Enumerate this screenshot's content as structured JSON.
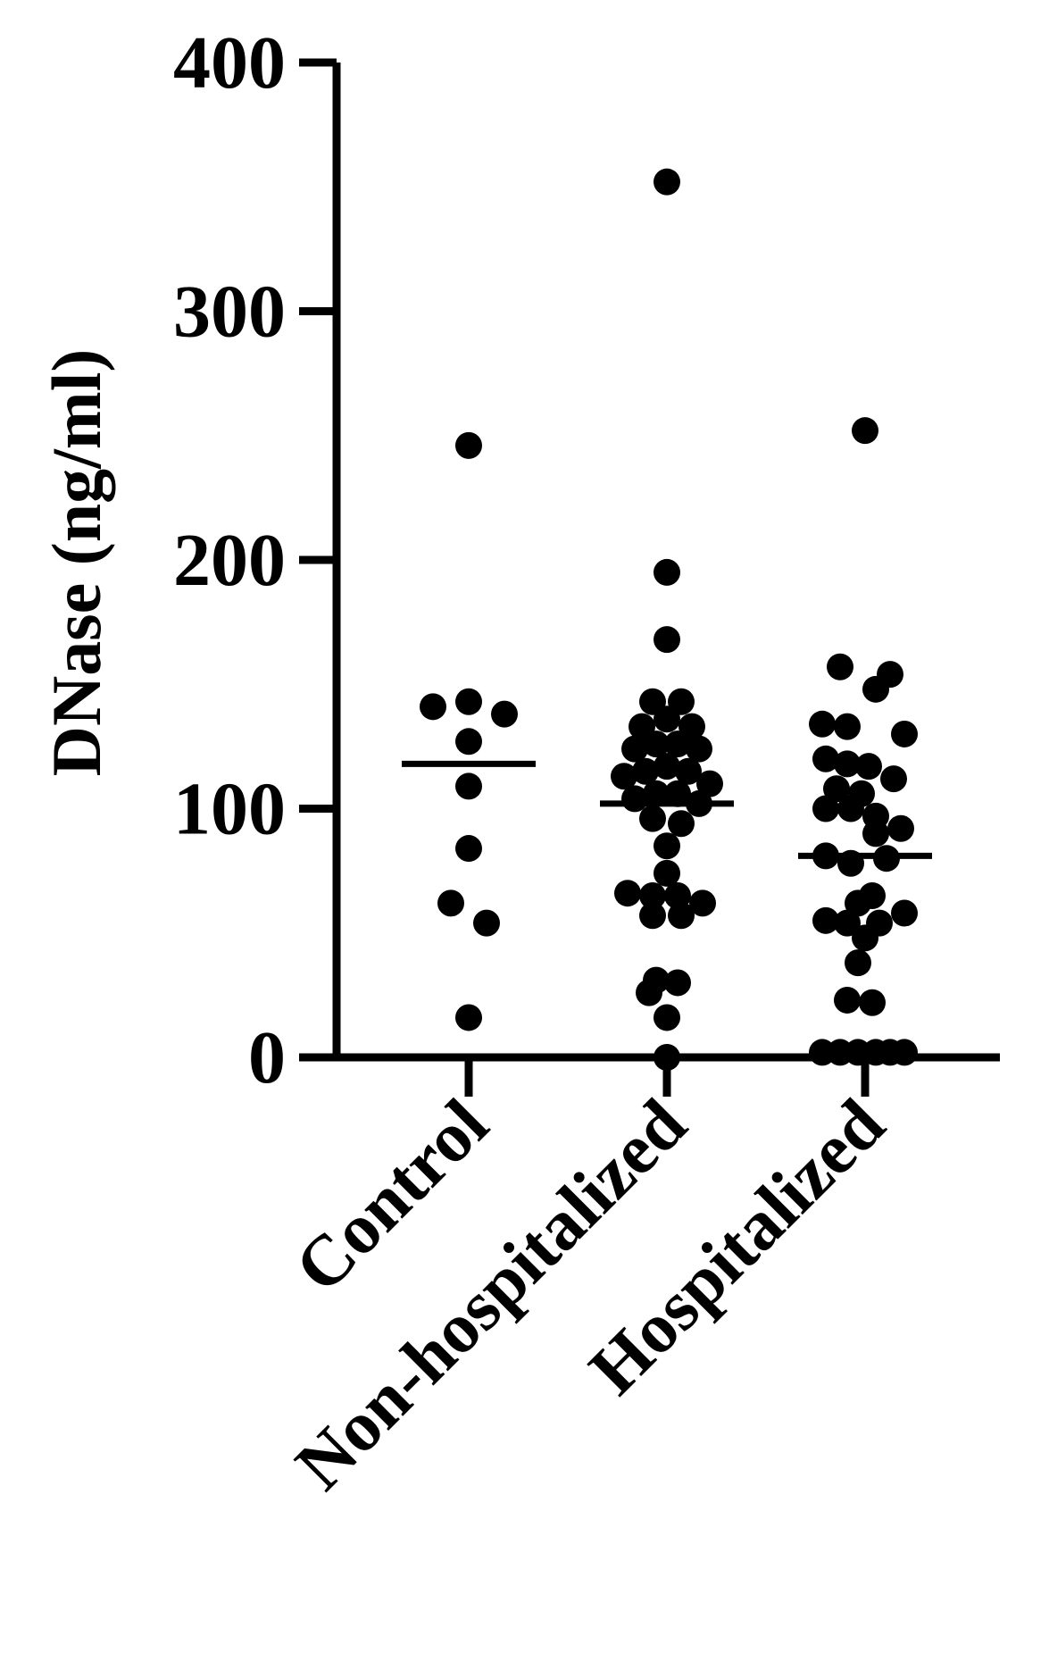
{
  "chart_data": {
    "type": "scatter",
    "title": "",
    "xlabel": "",
    "ylabel": "DNase (ng/ml)",
    "ylim": [
      0,
      400
    ],
    "yticks": [
      0,
      100,
      200,
      300,
      400
    ],
    "ytick_labels": [
      "0",
      "100",
      "200",
      "300",
      "400"
    ],
    "categories": [
      "Control",
      "Non-hospitalized",
      "Hospitalized"
    ],
    "grid": false,
    "color": "#000000",
    "series": [
      {
        "category": "Control",
        "mean": 118,
        "points": [
          {
            "offset": -0.5,
            "y": 141
          },
          {
            "offset": 0,
            "y": 143
          },
          {
            "offset": 0.5,
            "y": 138
          },
          {
            "offset": 0,
            "y": 127
          },
          {
            "offset": 0,
            "y": 109
          },
          {
            "offset": 0,
            "y": 84
          },
          {
            "offset": -0.25,
            "y": 62
          },
          {
            "offset": 0.25,
            "y": 54
          },
          {
            "offset": 0,
            "y": 16
          },
          {
            "offset": 0,
            "y": 246
          }
        ]
      },
      {
        "category": "Non-hospitalized",
        "mean": 102,
        "points": [
          {
            "offset": 0,
            "y": 352
          },
          {
            "offset": 0,
            "y": 195
          },
          {
            "offset": 0,
            "y": 168
          },
          {
            "offset": -0.2,
            "y": 143
          },
          {
            "offset": 0.2,
            "y": 143
          },
          {
            "offset": -0.35,
            "y": 133
          },
          {
            "offset": 0,
            "y": 136
          },
          {
            "offset": 0.35,
            "y": 133
          },
          {
            "offset": -0.45,
            "y": 124
          },
          {
            "offset": -0.15,
            "y": 126
          },
          {
            "offset": 0.15,
            "y": 126
          },
          {
            "offset": 0.45,
            "y": 124
          },
          {
            "offset": -0.6,
            "y": 113
          },
          {
            "offset": -0.3,
            "y": 115
          },
          {
            "offset": 0,
            "y": 117
          },
          {
            "offset": 0.3,
            "y": 115
          },
          {
            "offset": 0.6,
            "y": 110
          },
          {
            "offset": -0.45,
            "y": 104
          },
          {
            "offset": -0.15,
            "y": 106
          },
          {
            "offset": 0.15,
            "y": 106
          },
          {
            "offset": 0.45,
            "y": 102
          },
          {
            "offset": -0.2,
            "y": 96
          },
          {
            "offset": 0.2,
            "y": 94
          },
          {
            "offset": 0,
            "y": 85
          },
          {
            "offset": 0,
            "y": 74
          },
          {
            "offset": -0.55,
            "y": 66
          },
          {
            "offset": -0.2,
            "y": 65
          },
          {
            "offset": 0.15,
            "y": 65
          },
          {
            "offset": 0.5,
            "y": 62
          },
          {
            "offset": -0.2,
            "y": 57
          },
          {
            "offset": 0.2,
            "y": 57
          },
          {
            "offset": -0.15,
            "y": 31
          },
          {
            "offset": 0.15,
            "y": 30
          },
          {
            "offset": -0.25,
            "y": 26
          },
          {
            "offset": 0,
            "y": 16
          },
          {
            "offset": 0,
            "y": 0
          }
        ]
      },
      {
        "category": "Hospitalized",
        "mean": 81,
        "points": [
          {
            "offset": 0,
            "y": 252
          },
          {
            "offset": -0.35,
            "y": 157
          },
          {
            "offset": 0.35,
            "y": 154
          },
          {
            "offset": 0.15,
            "y": 148
          },
          {
            "offset": -0.6,
            "y": 134
          },
          {
            "offset": -0.25,
            "y": 133
          },
          {
            "offset": 0.55,
            "y": 130
          },
          {
            "offset": -0.55,
            "y": 120
          },
          {
            "offset": -0.25,
            "y": 118
          },
          {
            "offset": 0.05,
            "y": 117
          },
          {
            "offset": -0.4,
            "y": 108
          },
          {
            "offset": 0.4,
            "y": 112
          },
          {
            "offset": -0.05,
            "y": 106
          },
          {
            "offset": -0.55,
            "y": 100
          },
          {
            "offset": -0.2,
            "y": 100
          },
          {
            "offset": 0.15,
            "y": 97
          },
          {
            "offset": 0.15,
            "y": 90
          },
          {
            "offset": 0.5,
            "y": 92
          },
          {
            "offset": -0.55,
            "y": 81
          },
          {
            "offset": -0.2,
            "y": 78
          },
          {
            "offset": 0.3,
            "y": 80
          },
          {
            "offset": 0.1,
            "y": 65
          },
          {
            "offset": -0.1,
            "y": 62
          },
          {
            "offset": -0.55,
            "y": 55
          },
          {
            "offset": -0.25,
            "y": 54
          },
          {
            "offset": 0.2,
            "y": 54
          },
          {
            "offset": 0.55,
            "y": 58
          },
          {
            "offset": 0,
            "y": 48
          },
          {
            "offset": -0.1,
            "y": 38
          },
          {
            "offset": -0.25,
            "y": 23
          },
          {
            "offset": 0.1,
            "y": 22
          },
          {
            "offset": -0.6,
            "y": 2
          },
          {
            "offset": -0.35,
            "y": 2
          },
          {
            "offset": -0.1,
            "y": 2
          },
          {
            "offset": 0.15,
            "y": 2
          },
          {
            "offset": 0.35,
            "y": 2
          },
          {
            "offset": 0.55,
            "y": 2
          }
        ]
      }
    ]
  }
}
